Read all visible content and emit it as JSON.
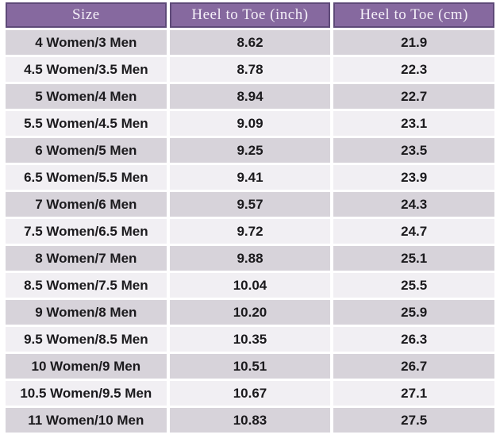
{
  "chart_data": {
    "type": "table",
    "columns": [
      "Size",
      "Heel to Toe (inch)",
      "Heel to Toe (cm)"
    ],
    "rows": [
      [
        "4 Women/3 Men",
        "8.62",
        "21.9"
      ],
      [
        "4.5 Women/3.5 Men",
        "8.78",
        "22.3"
      ],
      [
        "5 Women/4 Men",
        "8.94",
        "22.7"
      ],
      [
        "5.5 Women/4.5 Men",
        "9.09",
        "23.1"
      ],
      [
        "6 Women/5 Men",
        "9.25",
        "23.5"
      ],
      [
        "6.5 Women/5.5 Men",
        "9.41",
        "23.9"
      ],
      [
        "7 Women/6 Men",
        "9.57",
        "24.3"
      ],
      [
        "7.5 Women/6.5 Men",
        "9.72",
        "24.7"
      ],
      [
        "8 Women/7 Men",
        "9.88",
        "25.1"
      ],
      [
        "8.5 Women/7.5 Men",
        "10.04",
        "25.5"
      ],
      [
        "9 Women/8 Men",
        "10.20",
        "25.9"
      ],
      [
        "9.5 Women/8.5 Men",
        "10.35",
        "26.3"
      ],
      [
        "10 Women/9 Men",
        "10.51",
        "26.7"
      ],
      [
        "10.5 Women/9.5 Men",
        "10.67",
        "27.1"
      ],
      [
        "11 Women/10 Men",
        "10.83",
        "27.5"
      ]
    ],
    "layout": {
      "grid": "off",
      "row_striping": "alternating",
      "text_align": "center"
    }
  },
  "colors": {
    "page_bg": "#ffffff",
    "header_bg": "#86699f",
    "header_border": "#5e4a78",
    "header_text": "#f4eff8",
    "row_odd_bg": "#d7d3da",
    "row_even_bg": "#f1eff3",
    "body_text": "#1b1a1d"
  }
}
